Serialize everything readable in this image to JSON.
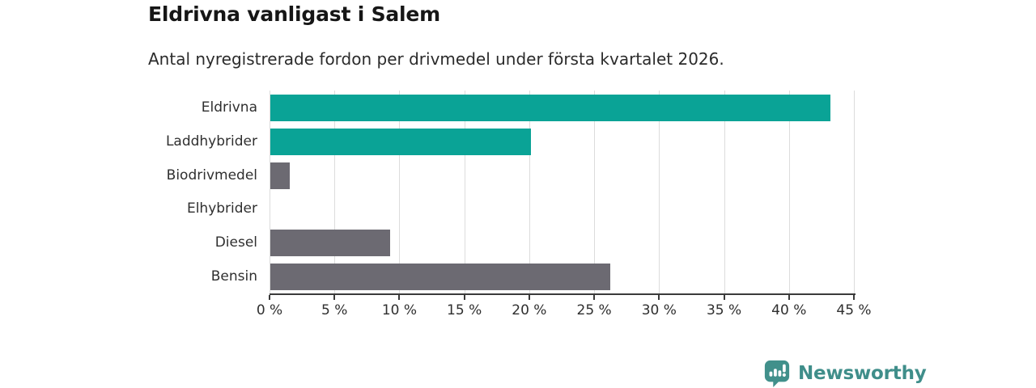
{
  "header": {
    "title": "Eldrivna vanligast i Salem",
    "subtitle": "Antal nyregistrerade fordon per drivmedel under första kvartalet 2026."
  },
  "chart_data": {
    "type": "bar",
    "orientation": "horizontal",
    "categories": [
      "Eldrivna",
      "Laddhybrider",
      "Biodrivmedel",
      "Elhybrider",
      "Diesel",
      "Bensin"
    ],
    "values": [
      43.1,
      20.1,
      1.5,
      0,
      9.2,
      26.2
    ],
    "unit": "%",
    "xlim": [
      0,
      45
    ],
    "x_ticks": [
      0,
      5,
      10,
      15,
      20,
      25,
      30,
      35,
      40,
      45
    ],
    "x_tick_labels": [
      "0 %",
      "5 %",
      "10 %",
      "15 %",
      "20 %",
      "25 %",
      "30 %",
      "35 %",
      "40 %",
      "45 %"
    ],
    "grid": true,
    "legend": "none",
    "bar_colors": [
      "#0aa396",
      "#0aa396",
      "#6c6a72",
      "#6c6a72",
      "#6c6a72",
      "#6c6a72"
    ],
    "colors": {
      "highlight": "#0aa396",
      "default": "#6c6a72",
      "gridline": "#dcdcdc",
      "axis": "#3b3b3b"
    }
  },
  "footer": {
    "brand": "Newsworthy",
    "logo_icon": "bar-chart-speech-bubble-icon",
    "brand_color": "#3f8e8a",
    "icon_color": "#41908b"
  }
}
